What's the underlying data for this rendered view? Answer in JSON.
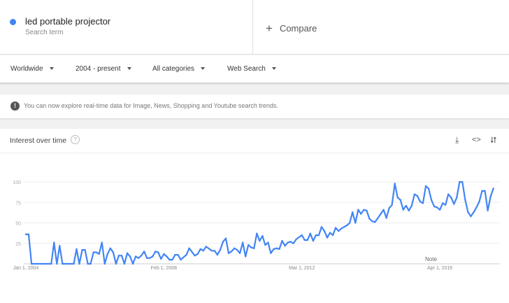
{
  "search_term": {
    "name": "led portable projector",
    "subtitle": "Search term",
    "color": "#4285f4"
  },
  "compare": {
    "icon": "plus-icon",
    "label": "Compare"
  },
  "filters": [
    {
      "label": "Worldwide"
    },
    {
      "label": "2004 - present"
    },
    {
      "label": "All categories"
    },
    {
      "label": "Web Search"
    }
  ],
  "notice": {
    "icon": "exclamation-icon",
    "text": "You can now explore real-time data for Image, News, Shopping and Youtube search trends."
  },
  "card": {
    "title": "Interest over time",
    "help_icon": "help-icon",
    "actions": [
      "download-icon",
      "embed-icon",
      "share-icon"
    ]
  },
  "chart_data": {
    "type": "line",
    "title": "Interest over time",
    "ylim": [
      0,
      100
    ],
    "y_ticks": [
      "100",
      "75",
      "50",
      "25"
    ],
    "x_tick_labels": [
      "Jan 1, 2004",
      "Feb 1, 2008",
      "Mar 1, 2012",
      "Apr 1, 2016"
    ],
    "annotation": "Note",
    "grid": true,
    "line_color": "#4285f4",
    "series": [
      {
        "points": [
          [
            "2004-01",
            36
          ],
          [
            "2004-02",
            36
          ],
          [
            "2004-03",
            0
          ],
          [
            "2004-10",
            0
          ],
          [
            "2004-11",
            26
          ],
          [
            "2004-12",
            0
          ],
          [
            "2005-01",
            22
          ],
          [
            "2005-02",
            0
          ],
          [
            "2005-06",
            0
          ],
          [
            "2005-07",
            18
          ],
          [
            "2005-08",
            0
          ],
          [
            "2005-09",
            17
          ],
          [
            "2005-10",
            17
          ],
          [
            "2005-11",
            0
          ],
          [
            "2005-12",
            0
          ],
          [
            "2006-01",
            14
          ],
          [
            "2006-02",
            14
          ],
          [
            "2006-03",
            12
          ],
          [
            "2006-04",
            26
          ],
          [
            "2006-05",
            0
          ],
          [
            "2006-06",
            12
          ],
          [
            "2006-07",
            19
          ],
          [
            "2006-08",
            14
          ],
          [
            "2006-09",
            0
          ],
          [
            "2006-10",
            10
          ],
          [
            "2006-11",
            10
          ],
          [
            "2006-12",
            0
          ],
          [
            "2007-01",
            13
          ],
          [
            "2007-02",
            9
          ],
          [
            "2007-03",
            0
          ],
          [
            "2007-04",
            9
          ],
          [
            "2007-05",
            7
          ],
          [
            "2007-06",
            10
          ],
          [
            "2007-07",
            15
          ],
          [
            "2007-08",
            7
          ],
          [
            "2007-09",
            7
          ],
          [
            "2007-10",
            9
          ],
          [
            "2007-11",
            15
          ],
          [
            "2007-12",
            14
          ],
          [
            "2008-01",
            6
          ],
          [
            "2008-02",
            12
          ],
          [
            "2008-03",
            9
          ],
          [
            "2008-04",
            5
          ],
          [
            "2008-05",
            5
          ],
          [
            "2008-06",
            11
          ],
          [
            "2008-07",
            11
          ],
          [
            "2008-08",
            5
          ],
          [
            "2008-09",
            8
          ],
          [
            "2008-10",
            11
          ],
          [
            "2008-11",
            19
          ],
          [
            "2009-01",
            10
          ],
          [
            "2009-02",
            12
          ],
          [
            "2009-03",
            18
          ],
          [
            "2009-04",
            16
          ],
          [
            "2009-05",
            21
          ],
          [
            "2009-07",
            16
          ],
          [
            "2009-08",
            16
          ],
          [
            "2009-09",
            11
          ],
          [
            "2009-10",
            17
          ],
          [
            "2009-11",
            27
          ],
          [
            "2009-12",
            31
          ],
          [
            "2010-01",
            13
          ],
          [
            "2010-02",
            15
          ],
          [
            "2010-03",
            19
          ],
          [
            "2010-04",
            17
          ],
          [
            "2010-05",
            13
          ],
          [
            "2010-06",
            26
          ],
          [
            "2010-07",
            9
          ],
          [
            "2010-08",
            23
          ],
          [
            "2010-09",
            20
          ],
          [
            "2010-10",
            19
          ],
          [
            "2010-11",
            37
          ],
          [
            "2010-12",
            28
          ],
          [
            "2011-01",
            34
          ],
          [
            "2011-02",
            23
          ],
          [
            "2011-03",
            26
          ],
          [
            "2011-04",
            13
          ],
          [
            "2011-05",
            18
          ],
          [
            "2011-06",
            19
          ],
          [
            "2011-07",
            18
          ],
          [
            "2011-08",
            28
          ],
          [
            "2011-09",
            22
          ],
          [
            "2011-10",
            26
          ],
          [
            "2011-11",
            27
          ],
          [
            "2011-12",
            25
          ],
          [
            "2012-01",
            30
          ],
          [
            "2012-03",
            35
          ],
          [
            "2012-04",
            29
          ],
          [
            "2012-05",
            29
          ],
          [
            "2012-06",
            37
          ],
          [
            "2012-07",
            28
          ],
          [
            "2012-08",
            35
          ],
          [
            "2012-09",
            35
          ],
          [
            "2012-10",
            45
          ],
          [
            "2012-11",
            40
          ],
          [
            "2012-12",
            32
          ],
          [
            "2013-01",
            38
          ],
          [
            "2013-02",
            35
          ],
          [
            "2013-03",
            44
          ],
          [
            "2013-04",
            40
          ],
          [
            "2013-05",
            43
          ],
          [
            "2013-07",
            47
          ],
          [
            "2013-08",
            50
          ],
          [
            "2013-09",
            63
          ],
          [
            "2013-10",
            50
          ],
          [
            "2013-11",
            66
          ],
          [
            "2013-12",
            61
          ],
          [
            "2014-01",
            66
          ],
          [
            "2014-02",
            65
          ],
          [
            "2014-03",
            55
          ],
          [
            "2014-04",
            52
          ],
          [
            "2014-05",
            51
          ],
          [
            "2014-06",
            56
          ],
          [
            "2014-07",
            61
          ],
          [
            "2014-08",
            66
          ],
          [
            "2014-09",
            56
          ],
          [
            "2014-10",
            68
          ],
          [
            "2014-11",
            72
          ],
          [
            "2014-12",
            98
          ],
          [
            "2015-01",
            81
          ],
          [
            "2015-02",
            78
          ],
          [
            "2015-03",
            66
          ],
          [
            "2015-04",
            71
          ],
          [
            "2015-05",
            65
          ],
          [
            "2015-06",
            71
          ],
          [
            "2015-07",
            85
          ],
          [
            "2015-08",
            83
          ],
          [
            "2015-09",
            76
          ],
          [
            "2015-10",
            74
          ],
          [
            "2015-11",
            95
          ],
          [
            "2015-12",
            92
          ],
          [
            "2016-01",
            78
          ],
          [
            "2016-02",
            70
          ],
          [
            "2016-03",
            69
          ],
          [
            "2016-04",
            66
          ],
          [
            "2016-05",
            74
          ],
          [
            "2016-06",
            72
          ],
          [
            "2016-07",
            85
          ],
          [
            "2016-08",
            81
          ],
          [
            "2016-09",
            73
          ],
          [
            "2016-10",
            81
          ],
          [
            "2016-11",
            100
          ],
          [
            "2016-12",
            100
          ],
          [
            "2017-01",
            78
          ],
          [
            "2017-02",
            63
          ],
          [
            "2017-03",
            58
          ],
          [
            "2017-04",
            63
          ],
          [
            "2017-05",
            69
          ],
          [
            "2017-06",
            76
          ],
          [
            "2017-07",
            89
          ],
          [
            "2017-08",
            89
          ],
          [
            "2017-09",
            65
          ],
          [
            "2017-10",
            82
          ],
          [
            "2017-11",
            92
          ]
        ]
      }
    ]
  }
}
